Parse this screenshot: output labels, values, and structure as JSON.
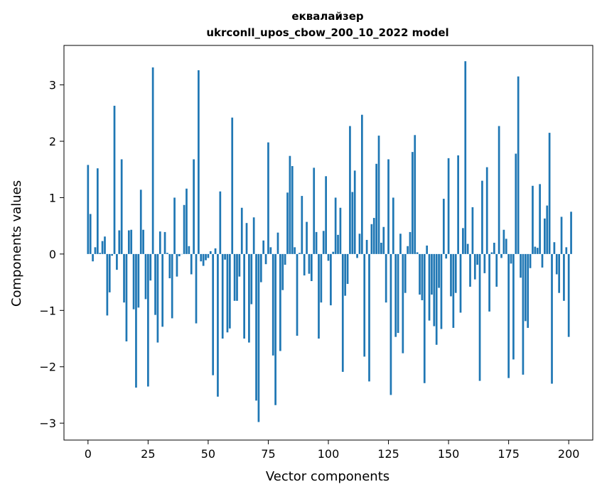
{
  "chart_data": {
    "type": "bar",
    "title_line1": "еквалайзер",
    "title_line2": "ukrconll_upos_cbow_200_10_2022 model",
    "xlabel": "Vector components",
    "ylabel": "Components values",
    "xlim": [
      -10,
      210
    ],
    "ylim": [
      -3.3,
      3.7
    ],
    "xticks": [
      0,
      25,
      50,
      75,
      100,
      125,
      150,
      175,
      200
    ],
    "yticks": [
      -3,
      -2,
      -1,
      0,
      1,
      2,
      3
    ],
    "ytick_labels": [
      "−3",
      "−2",
      "−1",
      "0",
      "1",
      "2",
      "3"
    ],
    "bar_color": "#1f77b4",
    "values": [
      1.58,
      0.71,
      -0.13,
      0.12,
      1.52,
      0.02,
      0.23,
      0.31,
      -1.09,
      -0.68,
      -0.03,
      2.63,
      -0.28,
      0.42,
      1.68,
      -0.86,
      -1.55,
      0.42,
      0.43,
      -0.98,
      -2.37,
      -0.95,
      1.14,
      0.43,
      -0.8,
      -2.35,
      -0.47,
      3.31,
      -1.08,
      -1.57,
      0.4,
      -1.29,
      0.39,
      0.02,
      -0.43,
      -1.14,
      1.0,
      -0.4,
      -0.04,
      0.0,
      0.87,
      1.16,
      0.14,
      -0.36,
      1.68,
      -1.23,
      3.26,
      -0.13,
      -0.21,
      -0.11,
      -0.07,
      0.05,
      -2.15,
      0.1,
      -2.53,
      1.11,
      -1.5,
      -0.1,
      -1.39,
      -1.32,
      2.42,
      -0.83,
      -0.83,
      -0.4,
      0.82,
      -1.5,
      0.55,
      -1.57,
      -0.89,
      0.65,
      -2.6,
      -2.98,
      -0.5,
      0.24,
      -0.18,
      1.98,
      0.12,
      -1.8,
      -2.68,
      0.38,
      -1.72,
      -0.64,
      -0.19,
      1.09,
      1.74,
      1.56,
      0.12,
      -1.45,
      0.02,
      1.03,
      -0.38,
      0.57,
      -0.35,
      -0.48,
      1.53,
      0.39,
      -1.5,
      -0.86,
      0.41,
      1.38,
      -0.12,
      -0.91,
      0.04,
      1.0,
      0.34,
      0.82,
      -2.09,
      -0.74,
      -0.53,
      2.27,
      1.1,
      1.48,
      -0.07,
      0.36,
      2.47,
      -1.82,
      0.25,
      -2.26,
      0.53,
      0.64,
      1.6,
      2.1,
      0.2,
      0.48,
      -0.86,
      1.68,
      -2.5,
      1.0,
      -1.47,
      -1.4,
      0.36,
      -1.76,
      -0.69,
      0.14,
      0.39,
      1.81,
      2.11,
      0.03,
      -0.72,
      -0.82,
      -2.29,
      0.15,
      -1.18,
      -0.72,
      -1.28,
      -1.61,
      -0.6,
      -1.33,
      0.98,
      -0.08,
      1.7,
      -0.75,
      -1.31,
      -0.69,
      1.75,
      -1.04,
      0.46,
      3.42,
      0.18,
      -0.58,
      0.83,
      -0.45,
      -0.19,
      -2.25,
      1.3,
      -0.34,
      1.54,
      -1.02,
      0.03,
      0.2,
      -0.58,
      2.27,
      -0.07,
      0.43,
      0.27,
      -2.2,
      -0.17,
      -1.87,
      1.78,
      3.15,
      -0.42,
      -2.14,
      -1.19,
      -1.31,
      -0.25,
      1.21,
      0.13,
      0.11,
      1.24,
      -0.24,
      0.63,
      0.86,
      2.15,
      -2.3,
      0.21,
      -0.36,
      -0.69,
      0.66,
      -0.83,
      0.12,
      -1.47,
      0.75
    ]
  }
}
